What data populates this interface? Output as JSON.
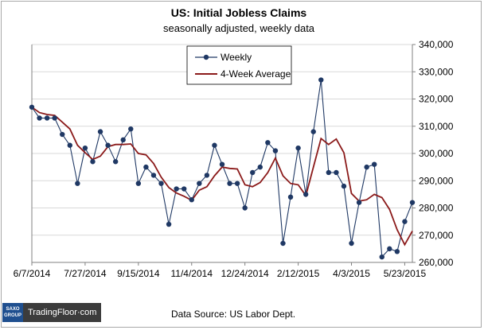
{
  "title": "US: Initial Jobless Claims",
  "subtitle": "seasonally  adjusted,  weekly data",
  "source": "Data Source:  US Labor Dept.",
  "logo": {
    "mark_top": "SAXO",
    "mark_bottom": "GROUP",
    "name": "TradingFloor·com"
  },
  "colors": {
    "weekly": "#1f3864",
    "average": "#8b1a1a",
    "grid": "#d9d9d9",
    "axis": "#808080"
  },
  "chart_data": {
    "type": "line",
    "x_tick_labels": [
      "6/7/2014",
      "7/27/2014",
      "9/15/2014",
      "11/4/2014",
      "12/24/2014",
      "2/12/2015",
      "4/3/2015",
      "5/23/2015"
    ],
    "y_tick_labels": [
      "260,000",
      "270,000",
      "280,000",
      "290,000",
      "300,000",
      "310,000",
      "320,000",
      "330,000",
      "340,000"
    ],
    "ylim": [
      260000,
      340000
    ],
    "grid": "horizontal",
    "legend_position": "top-left",
    "series": [
      {
        "name": "Weekly",
        "marker": "circle",
        "values": [
          317000,
          313000,
          313000,
          313000,
          307000,
          303000,
          289000,
          302000,
          297000,
          308000,
          303000,
          297000,
          305000,
          309000,
          289000,
          295000,
          292000,
          289000,
          274000,
          287000,
          287000,
          283000,
          289000,
          292000,
          303000,
          296000,
          289000,
          289000,
          280000,
          293000,
          295000,
          304000,
          301000,
          267000,
          284000,
          302000,
          285000,
          308000,
          327000,
          293000,
          293000,
          288000,
          267000,
          282000,
          295000,
          296000,
          262000,
          265000,
          264000,
          275000,
          282000
        ]
      },
      {
        "name": "4-Week Average",
        "marker": "none",
        "values": [
          317000,
          315000,
          314300,
          314000,
          311500,
          309000,
          303000,
          300300,
          297800,
          299000,
          302500,
          303300,
          303300,
          303500,
          300000,
          299500,
          296300,
          291300,
          287500,
          285500,
          284300,
          282800,
          286500,
          287800,
          291800,
          295000,
          294500,
          294300,
          288500,
          287800,
          289300,
          293000,
          298300,
          291800,
          289000,
          288500,
          284500,
          295000,
          305500,
          303300,
          305300,
          300300,
          285300,
          282500,
          283000,
          285000,
          283800,
          279500,
          272000,
          266500,
          271500
        ]
      }
    ]
  }
}
